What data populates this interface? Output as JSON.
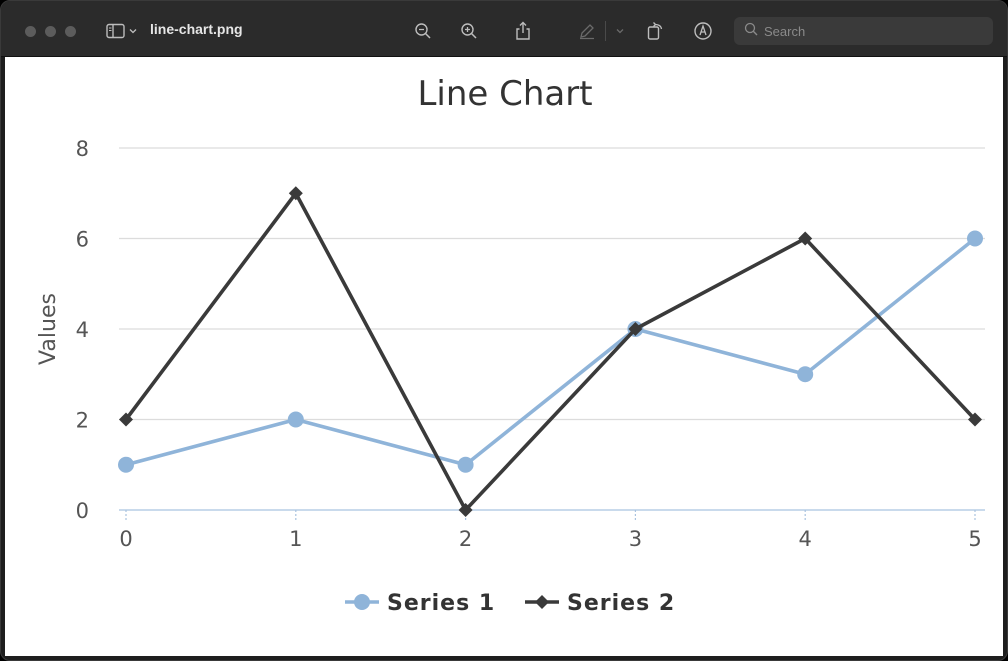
{
  "window": {
    "document_title": "line-chart.png",
    "search": {
      "placeholder": "Search",
      "value": ""
    }
  },
  "toolbar": {
    "icons": [
      "sidebar-icon",
      "chevron-down-icon",
      "zoom-out-icon",
      "zoom-in-icon",
      "share-icon",
      "markup-pen-icon",
      "chevron-down-icon",
      "rotate-icon",
      "annotate-icon",
      "search-icon"
    ]
  },
  "colors": {
    "series1": "#8fb4d9",
    "series2": "#3a3a3a",
    "grid": "#dcdcdc",
    "axis_text": "#555555"
  },
  "chart_data": {
    "type": "line",
    "title": "Line Chart",
    "xlabel": "",
    "ylabel": "Values",
    "x": [
      0,
      1,
      2,
      3,
      4,
      5
    ],
    "xlim": [
      0,
      5
    ],
    "ylim": [
      0,
      8
    ],
    "yticks": [
      0,
      2,
      4,
      6,
      8
    ],
    "grid": true,
    "legend_position": "bottom-center",
    "series": [
      {
        "name": "Series 1",
        "values": [
          1,
          2,
          1,
          4,
          3,
          6
        ],
        "marker": "circle",
        "color": "#8fb4d9"
      },
      {
        "name": "Series 2",
        "values": [
          2,
          7,
          0,
          4,
          6,
          2
        ],
        "marker": "diamond",
        "color": "#3a3a3a"
      }
    ]
  }
}
